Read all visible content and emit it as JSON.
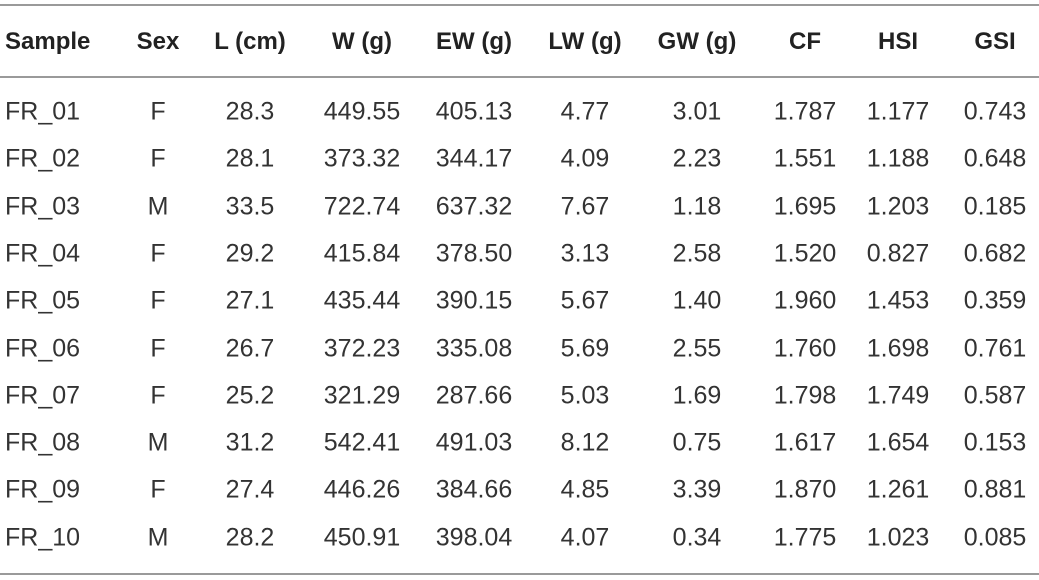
{
  "table": {
    "header": [
      "Sample",
      "Sex",
      "L (cm)",
      "W (g)",
      "EW (g)",
      "LW (g)",
      "GW (g)",
      "CF",
      "HSI",
      "GSI"
    ],
    "rows": [
      [
        "FR_01",
        "F",
        "28.3",
        "449.55",
        "405.13",
        "4.77",
        "3.01",
        "1.787",
        "1.177",
        "0.743"
      ],
      [
        "FR_02",
        "F",
        "28.1",
        "373.32",
        "344.17",
        "4.09",
        "2.23",
        "1.551",
        "1.188",
        "0.648"
      ],
      [
        "FR_03",
        "M",
        "33.5",
        "722.74",
        "637.32",
        "7.67",
        "1.18",
        "1.695",
        "1.203",
        "0.185"
      ],
      [
        "FR_04",
        "F",
        "29.2",
        "415.84",
        "378.50",
        "3.13",
        "2.58",
        "1.520",
        "0.827",
        "0.682"
      ],
      [
        "FR_05",
        "F",
        "27.1",
        "435.44",
        "390.15",
        "5.67",
        "1.40",
        "1.960",
        "1.453",
        "0.359"
      ],
      [
        "FR_06",
        "F",
        "26.7",
        "372.23",
        "335.08",
        "5.69",
        "2.55",
        "1.760",
        "1.698",
        "0.761"
      ],
      [
        "FR_07",
        "F",
        "25.2",
        "321.29",
        "287.66",
        "5.03",
        "1.69",
        "1.798",
        "1.749",
        "0.587"
      ],
      [
        "FR_08",
        "M",
        "31.2",
        "542.41",
        "491.03",
        "8.12",
        "0.75",
        "1.617",
        "1.654",
        "0.153"
      ],
      [
        "FR_09",
        "F",
        "27.4",
        "446.26",
        "384.66",
        "4.85",
        "3.39",
        "1.870",
        "1.261",
        "0.881"
      ],
      [
        "FR_10",
        "M",
        "28.2",
        "450.91",
        "398.04",
        "4.07",
        "0.34",
        "1.775",
        "1.023",
        "0.085"
      ]
    ]
  }
}
